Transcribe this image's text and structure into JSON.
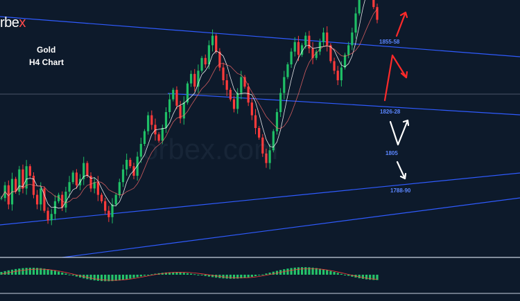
{
  "brand": {
    "text_main": "rbe",
    "text_accent": "x"
  },
  "watermark": "orbex.com",
  "title": {
    "line1": "Gold",
    "line2": "H4 Chart"
  },
  "levels": {
    "l1855": "1855-58",
    "l1826": "1826-28",
    "l1805": "1805",
    "l1788": "1788-90"
  },
  "colors": {
    "background": "#0d1a2b",
    "bull": "#1fbf66",
    "bear": "#ff3b3b",
    "trendline": "#2f5bff",
    "arrow_up": "#ff2a2a",
    "arrow_down": "#ffffff",
    "ma": "#ffffff",
    "macd_hist": "#25c46a",
    "macd_signal": "#ff3b3b"
  },
  "chart_data": {
    "type": "candlestick",
    "title": "Gold H4 Chart",
    "levels": [
      1855,
      1826,
      1805,
      1788
    ],
    "candles_close_path": [
      1778,
      1782,
      1776,
      1784,
      1780,
      1787,
      1781,
      1788,
      1785,
      1779,
      1776,
      1781,
      1774,
      1771,
      1773,
      1777,
      1779,
      1775,
      1780,
      1783,
      1786,
      1782,
      1784,
      1789,
      1785,
      1781,
      1783,
      1779,
      1777,
      1774,
      1772,
      1776,
      1779,
      1783,
      1787,
      1790,
      1788,
      1785,
      1791,
      1795,
      1799,
      1804,
      1801,
      1798,
      1796,
      1800,
      1805,
      1809,
      1812,
      1807,
      1803,
      1808,
      1814,
      1817,
      1813,
      1818,
      1822,
      1820,
      1826,
      1829,
      1824,
      1819,
      1815,
      1812,
      1809,
      1806,
      1811,
      1816,
      1813,
      1808,
      1804,
      1800,
      1797,
      1792,
      1789,
      1793,
      1799,
      1805,
      1811,
      1816,
      1820,
      1824,
      1827,
      1823,
      1826,
      1829,
      1825,
      1822,
      1824,
      1827,
      1830,
      1826,
      1821,
      1818,
      1815,
      1819,
      1823,
      1826,
      1830,
      1836,
      1845,
      1851,
      1848,
      1843,
      1838,
      1834
    ]
  }
}
